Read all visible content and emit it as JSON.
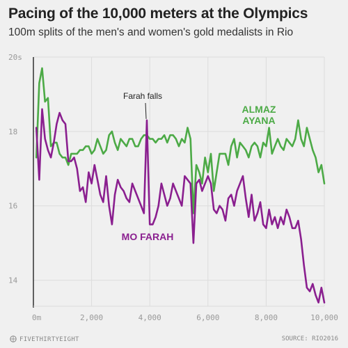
{
  "title": "Pacing of the 10,000 meters at the Olympics",
  "subtitle": "100m splits of the men's and women's gold medalists in Rio",
  "footer": {
    "left": "FIVETHIRTYEIGHT",
    "right": "SOURCE: RIO2016"
  },
  "colors": {
    "farah": "#8a1f8f",
    "ayana": "#4caa46",
    "axis": "#222222",
    "grid": "#dcdcdc",
    "tick": "#999999"
  },
  "chart_data": {
    "type": "line",
    "xlim": [
      0,
      10000
    ],
    "ylim": [
      13.3,
      20
    ],
    "y_ticks": [
      14,
      16,
      18,
      20
    ],
    "y_tick_labels": [
      "14",
      "16",
      "18",
      "20s"
    ],
    "x_ticks": [
      0,
      2000,
      4000,
      6000,
      8000,
      10000
    ],
    "x_tick_labels": [
      "0m",
      "2,000",
      "4,000",
      "6,000",
      "8,000",
      "10,000"
    ],
    "grid": true,
    "annotations": [
      {
        "text": "Farah falls",
        "x": 3900,
        "y": 18.3
      }
    ],
    "series": [
      {
        "name": "ALMAZ AYANA",
        "label_lines": [
          "ALMAZ",
          "AYANA"
        ],
        "x": [
          100,
          200,
          300,
          400,
          500,
          600,
          700,
          800,
          900,
          1000,
          1100,
          1200,
          1300,
          1400,
          1500,
          1600,
          1700,
          1800,
          1900,
          2000,
          2100,
          2200,
          2300,
          2400,
          2500,
          2600,
          2700,
          2800,
          2900,
          3000,
          3100,
          3200,
          3300,
          3400,
          3500,
          3600,
          3700,
          3800,
          3900,
          4000,
          4100,
          4200,
          4300,
          4400,
          4500,
          4600,
          4700,
          4800,
          4900,
          5000,
          5100,
          5200,
          5300,
          5400,
          5500,
          5600,
          5700,
          5800,
          5900,
          6000,
          6100,
          6200,
          6300,
          6400,
          6500,
          6600,
          6700,
          6800,
          6900,
          7000,
          7100,
          7200,
          7300,
          7400,
          7500,
          7600,
          7700,
          7800,
          7900,
          8000,
          8100,
          8200,
          8300,
          8400,
          8500,
          8600,
          8700,
          8800,
          8900,
          9000,
          9100,
          9200,
          9300,
          9400,
          9500,
          9600,
          9700,
          9800,
          9900,
          10000
        ],
        "values": [
          17.3,
          19.3,
          19.7,
          18.8,
          18.9,
          17.6,
          17.7,
          17.7,
          17.4,
          17.3,
          17.3,
          17.1,
          17.4,
          17.4,
          17.4,
          17.5,
          17.5,
          17.6,
          17.6,
          17.4,
          17.5,
          17.8,
          17.6,
          17.4,
          17.5,
          17.9,
          18.0,
          17.7,
          17.5,
          17.8,
          17.7,
          17.6,
          17.8,
          17.8,
          17.6,
          17.6,
          17.8,
          17.9,
          17.9,
          17.8,
          17.8,
          17.7,
          17.8,
          17.8,
          17.9,
          17.7,
          17.9,
          17.9,
          17.8,
          17.6,
          17.8,
          17.7,
          18.1,
          17.8,
          15.8,
          17.1,
          16.9,
          16.6,
          17.3,
          16.9,
          17.4,
          16.4,
          16.9,
          17.4,
          17.4,
          17.4,
          17.1,
          17.6,
          17.8,
          17.3,
          17.7,
          17.6,
          17.5,
          17.3,
          17.6,
          17.7,
          17.6,
          17.3,
          17.7,
          17.6,
          18.1,
          17.4,
          17.6,
          17.8,
          17.6,
          17.5,
          17.8,
          17.7,
          17.6,
          17.8,
          18.3,
          17.8,
          17.6,
          18.1,
          17.8,
          17.5,
          17.3,
          16.9,
          17.1,
          16.6
        ]
      },
      {
        "name": "MO FARAH",
        "label_lines": [
          "MO FARAH"
        ],
        "x": [
          100,
          200,
          300,
          400,
          500,
          600,
          700,
          800,
          900,
          1000,
          1100,
          1200,
          1300,
          1400,
          1500,
          1600,
          1700,
          1800,
          1900,
          2000,
          2100,
          2200,
          2300,
          2400,
          2500,
          2600,
          2700,
          2800,
          2900,
          3000,
          3100,
          3200,
          3300,
          3400,
          3500,
          3600,
          3700,
          3800,
          3900,
          4000,
          4100,
          4200,
          4300,
          4400,
          4500,
          4600,
          4700,
          4800,
          4900,
          5000,
          5100,
          5200,
          5300,
          5400,
          5500,
          5600,
          5700,
          5800,
          5900,
          6000,
          6100,
          6200,
          6300,
          6400,
          6500,
          6600,
          6700,
          6800,
          6900,
          7000,
          7100,
          7200,
          7300,
          7400,
          7500,
          7600,
          7700,
          7800,
          7900,
          8000,
          8100,
          8200,
          8300,
          8400,
          8500,
          8600,
          8700,
          8800,
          8900,
          9000,
          9100,
          9200,
          9300,
          9400,
          9500,
          9600,
          9700,
          9800,
          9900,
          10000
        ],
        "values": [
          18.1,
          16.7,
          18.6,
          17.8,
          17.5,
          17.3,
          17.7,
          18.2,
          18.5,
          18.3,
          18.2,
          17.2,
          17.2,
          17.3,
          17.0,
          16.4,
          16.5,
          16.1,
          16.9,
          16.6,
          17.1,
          16.7,
          16.3,
          16.1,
          16.8,
          16.0,
          15.5,
          16.3,
          16.7,
          16.5,
          16.4,
          16.2,
          16.1,
          16.6,
          16.4,
          16.2,
          16.0,
          15.8,
          18.3,
          15.5,
          15.5,
          15.7,
          16.0,
          16.6,
          16.3,
          16.0,
          16.2,
          16.6,
          16.4,
          16.2,
          16.0,
          16.8,
          16.7,
          16.6,
          15.0,
          16.6,
          16.7,
          16.4,
          16.6,
          16.8,
          16.6,
          15.9,
          15.8,
          16.0,
          15.9,
          15.6,
          16.2,
          16.3,
          16.0,
          16.4,
          16.6,
          16.8,
          16.2,
          15.7,
          16.3,
          15.6,
          15.8,
          16.1,
          15.5,
          15.4,
          15.9,
          15.5,
          15.7,
          15.4,
          15.7,
          15.5,
          15.9,
          15.7,
          15.4,
          15.4,
          15.6,
          15.1,
          14.4,
          13.8,
          13.7,
          13.9,
          13.6,
          13.4,
          13.8,
          13.4
        ]
      }
    ]
  }
}
